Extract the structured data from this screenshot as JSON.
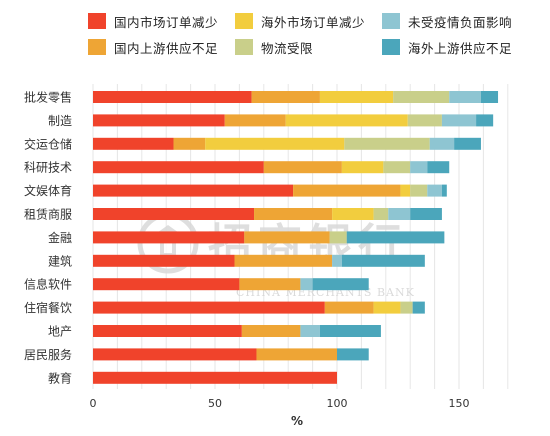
{
  "legend": [
    {
      "label": "国内市场订单减少",
      "color": "#f0432b"
    },
    {
      "label": "海外市场订单减少",
      "color": "#f2cd3e"
    },
    {
      "label": "未受疫情负面影响",
      "color": "#8ec5d2"
    },
    {
      "label": "国内上游供应不足",
      "color": "#eea535"
    },
    {
      "label": "物流受限",
      "color": "#c9cf8a"
    },
    {
      "label": "海外上游供应不足",
      "color": "#4ba6bb"
    }
  ],
  "watermark": {
    "cn": "招商银行",
    "en": "CHINA MERCHANTS BANK"
  },
  "chart_data": {
    "type": "bar",
    "orientation": "horizontal",
    "stacked": true,
    "categories": [
      "批发零售",
      "制造",
      "交运仓储",
      "科研技术",
      "文娱体育",
      "租赁商服",
      "金融",
      "建筑",
      "信息软件",
      "住宿餐饮",
      "地产",
      "居民服务",
      "教育"
    ],
    "series": [
      {
        "name": "国内市场订单减少",
        "color": "#f0432b",
        "values": [
          65,
          54,
          33,
          70,
          82,
          66,
          62,
          58,
          60,
          95,
          61,
          67,
          100
        ]
      },
      {
        "name": "国内上游供应不足",
        "color": "#eea535",
        "values": [
          28,
          25,
          13,
          32,
          44,
          32,
          35,
          40,
          25,
          20,
          24,
          33,
          0
        ]
      },
      {
        "name": "海外市场订单减少",
        "color": "#f2cd3e",
        "values": [
          30,
          50,
          57,
          17,
          4,
          17,
          0,
          0,
          0,
          11,
          0,
          0,
          0
        ]
      },
      {
        "name": "物流受限",
        "color": "#c9cf8a",
        "values": [
          23,
          14,
          35,
          11,
          7,
          6,
          7,
          0,
          0,
          5,
          0,
          0,
          0
        ]
      },
      {
        "name": "未受疫情负面影响",
        "color": "#8ec5d2",
        "values": [
          13,
          14,
          10,
          7,
          6,
          9,
          0,
          4,
          5,
          0,
          8,
          0,
          0
        ]
      },
      {
        "name": "海外上游供应不足",
        "color": "#4ba6bb",
        "values": [
          7,
          7,
          11,
          9,
          2,
          13,
          40,
          34,
          23,
          5,
          25,
          13,
          0
        ]
      }
    ],
    "xlabel": "%",
    "xlim": [
      0,
      170
    ],
    "xticks": [
      0,
      50,
      100,
      150
    ],
    "grid": true,
    "legend_position": "top"
  }
}
